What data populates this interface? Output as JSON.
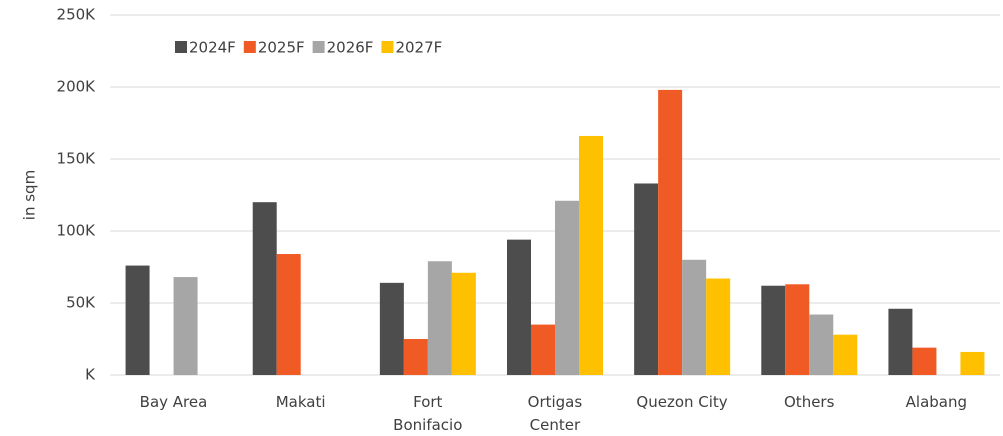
{
  "chart_data": {
    "type": "bar",
    "y_label": "in sqm",
    "categories": [
      "Bay Area",
      "Makati",
      "Fort\nBonifacio",
      "Ortigas\nCenter",
      "Quezon City",
      "Others",
      "Alabang"
    ],
    "series": [
      {
        "name": "2024F",
        "color": "#4d4d4d",
        "values": [
          76000,
          120000,
          64000,
          94000,
          133000,
          62000,
          46000
        ]
      },
      {
        "name": "2025F",
        "color": "#f05a24",
        "values": [
          null,
          84000,
          25000,
          35000,
          198000,
          63000,
          19000
        ]
      },
      {
        "name": "2026F",
        "color": "#a6a6a6",
        "values": [
          68000,
          null,
          79000,
          121000,
          80000,
          42000,
          null
        ]
      },
      {
        "name": "2027F",
        "color": "#ffc000",
        "values": [
          null,
          null,
          71000,
          166000,
          67000,
          28000,
          16000
        ]
      }
    ],
    "ylim": [
      0,
      250000
    ],
    "yticks": [
      {
        "value": 0,
        "label": "K"
      },
      {
        "value": 50000,
        "label": "50K"
      },
      {
        "value": 100000,
        "label": "100K"
      },
      {
        "value": 150000,
        "label": "150K"
      },
      {
        "value": 200000,
        "label": "200K"
      },
      {
        "value": 250000,
        "label": "250K"
      }
    ],
    "grid": true
  }
}
